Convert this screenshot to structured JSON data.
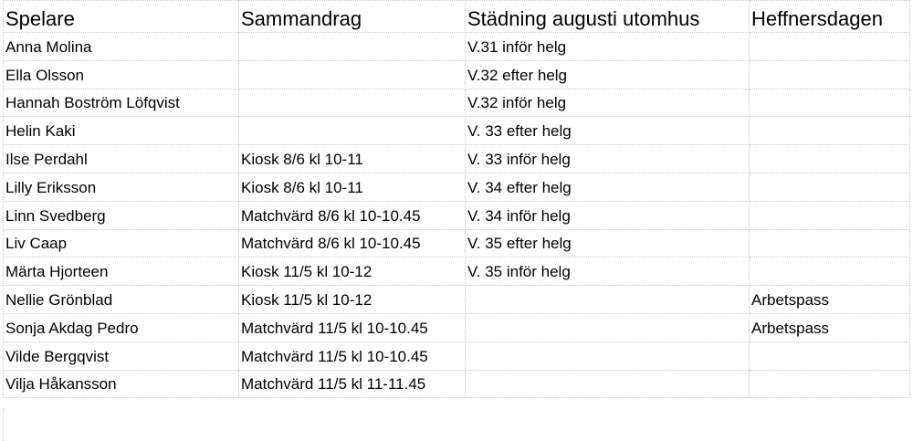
{
  "headers": [
    "Spelare",
    "Sammandrag",
    "Städning augusti utomhus",
    "Heffnersdagen"
  ],
  "rows": [
    [
      "Anna Molina",
      "",
      "V.31 inför helg",
      ""
    ],
    [
      "Ella Olsson",
      "",
      "V.32 efter helg",
      ""
    ],
    [
      "Hannah Boström Löfqvist",
      "",
      "V.32 inför helg",
      ""
    ],
    [
      "Helin Kaki",
      "",
      "V. 33 efter helg",
      ""
    ],
    [
      "Ilse Perdahl",
      "Kiosk 8/6 kl 10-11",
      "V. 33 inför helg",
      ""
    ],
    [
      "Lilly Eriksson",
      "Kiosk 8/6 kl 10-11",
      "V. 34 efter helg",
      ""
    ],
    [
      "Linn Svedberg",
      "Matchvärd 8/6 kl 10-10.45",
      "V. 34 inför helg",
      ""
    ],
    [
      "Liv Caap",
      "Matchvärd 8/6 kl 10-10.45",
      "V. 35 efter helg",
      ""
    ],
    [
      "Märta Hjorteen",
      "Kiosk 11/5 kl 10-12",
      "V. 35 inför helg",
      ""
    ],
    [
      "Nellie Grönblad",
      "Kiosk 11/5 kl 10-12",
      "",
      "Arbetspass"
    ],
    [
      "Sonja Akdag Pedro",
      "Matchvärd 11/5 kl 10-10.45",
      "",
      "Arbetspass"
    ],
    [
      "Vilde Bergqvist",
      "Matchvärd 11/5 kl 10-10.45",
      "",
      ""
    ],
    [
      "Vilja Håkansson",
      "Matchvärd 11/5 kl 11-11.45",
      "",
      ""
    ]
  ]
}
